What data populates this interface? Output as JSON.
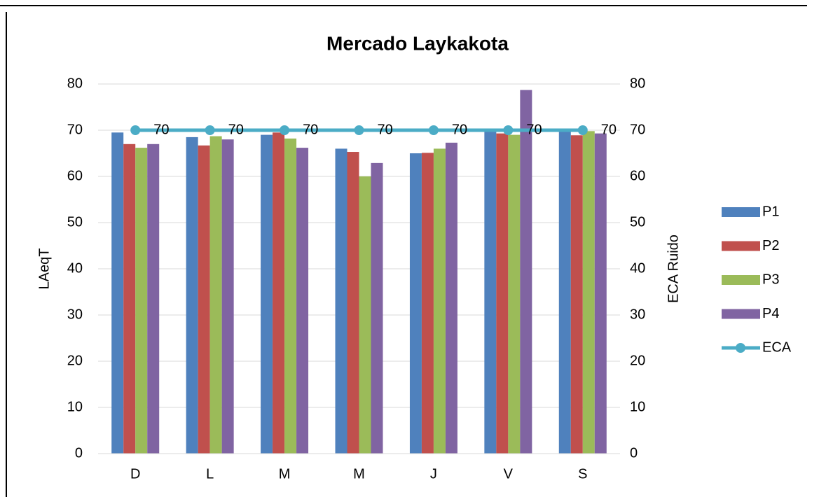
{
  "chart_data": {
    "type": "bar",
    "title": "Mercado Laykakota",
    "categories": [
      "D",
      "L",
      "M",
      "M",
      "J",
      "V",
      "S"
    ],
    "series": [
      {
        "name": "P1",
        "color": "#4f81bd",
        "values": [
          69.5,
          68.5,
          69,
          66,
          65,
          69.8,
          69.8
        ]
      },
      {
        "name": "P2",
        "color": "#c0504d",
        "values": [
          67,
          66.7,
          69.5,
          65.3,
          65.1,
          69.3,
          68.9
        ]
      },
      {
        "name": "P3",
        "color": "#9bbb59",
        "values": [
          66.2,
          68.7,
          68.2,
          60,
          66,
          69,
          69.8
        ]
      },
      {
        "name": "P4",
        "color": "#8064a2",
        "values": [
          67,
          68,
          66.2,
          62.9,
          67.3,
          78.7,
          69.3
        ]
      },
      {
        "name": "ECA",
        "color": "#4bacc6",
        "type": "line",
        "axis": "y2",
        "values": [
          70,
          70,
          70,
          70,
          70,
          70,
          70
        ]
      }
    ],
    "ylabel": "LAeqT",
    "y2label": "ECA Ruido",
    "ylim": [
      0,
      80
    ],
    "yticks": [
      0,
      10,
      20,
      30,
      40,
      50,
      60,
      70,
      80
    ],
    "y2lim": [
      0,
      80
    ],
    "y2ticks": [
      0,
      10,
      20,
      30,
      40,
      50,
      60,
      70,
      80
    ],
    "grid": true,
    "legend": "right"
  }
}
